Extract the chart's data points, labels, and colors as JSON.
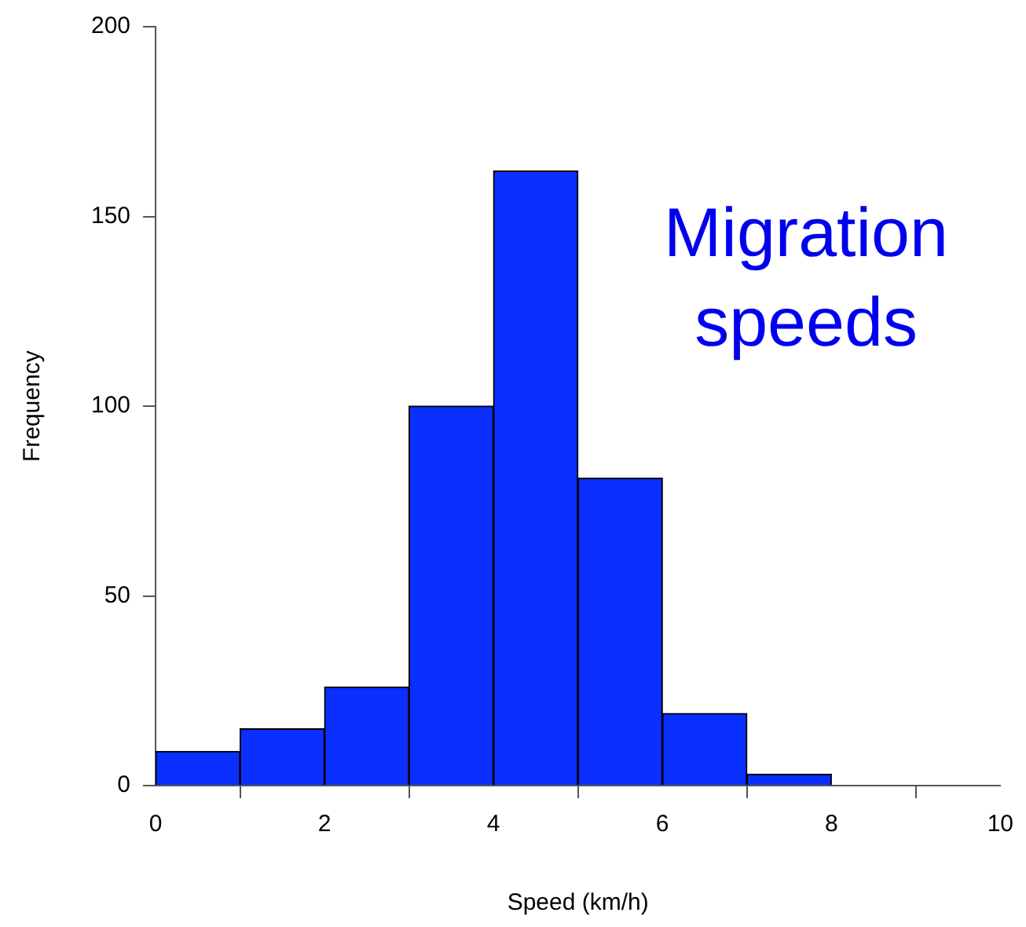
{
  "chart_data": {
    "type": "histogram",
    "xlabel": "Speed (km/h)",
    "ylabel": "Frequency",
    "bins": [
      0,
      1,
      2,
      3,
      4,
      5,
      6,
      7,
      8
    ],
    "values": [
      9,
      15,
      26,
      100,
      162,
      81,
      19,
      3
    ],
    "color": "#0a2fff",
    "xlim": [
      0,
      10
    ],
    "xticks": [
      0,
      2,
      4,
      6,
      8,
      10
    ],
    "ylim": [
      0,
      200
    ],
    "yticks": [
      0,
      50,
      100,
      150,
      200
    ],
    "grid": false,
    "legend": false,
    "annotations": [
      "Migration speeds"
    ]
  }
}
